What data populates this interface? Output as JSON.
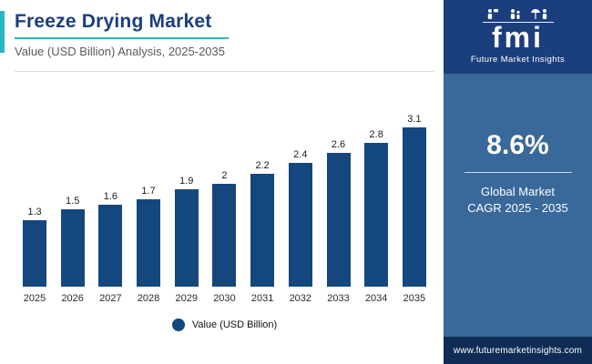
{
  "header": {
    "title": "Freeze Drying Market",
    "subtitle": "Value (USD Billion) Analysis, 2025-2035"
  },
  "chart_data": {
    "type": "bar",
    "categories": [
      "2025",
      "2026",
      "2027",
      "2028",
      "2029",
      "2030",
      "2031",
      "2032",
      "2033",
      "2034",
      "2035"
    ],
    "values": [
      1.3,
      1.5,
      1.6,
      1.7,
      1.9,
      2,
      2.2,
      2.4,
      2.6,
      2.8,
      3.1
    ],
    "title": "Freeze Drying Market",
    "xlabel": "",
    "ylabel": "Value (USD Billion)",
    "ylim": [
      0,
      4
    ],
    "grid": false,
    "legend": [
      "Value (USD Billion)"
    ],
    "legend_position": "bottom",
    "bar_color": "#14477e"
  },
  "legend": {
    "label": "Value (USD Billion)"
  },
  "sidebar": {
    "logo_text": "fmi",
    "brand_name": "Future Market Insights",
    "stat_value": "8.6%",
    "stat_label_line1": "Global Market",
    "stat_label_line2": "CAGR 2025 - 2035",
    "website": "www.futuremarketinsights.com"
  },
  "colors": {
    "accent_teal": "#2ab7c3",
    "navy": "#1b3e7d",
    "sidebar_blue": "#39689b",
    "footer_navy": "#102c54",
    "bar": "#14477e"
  }
}
